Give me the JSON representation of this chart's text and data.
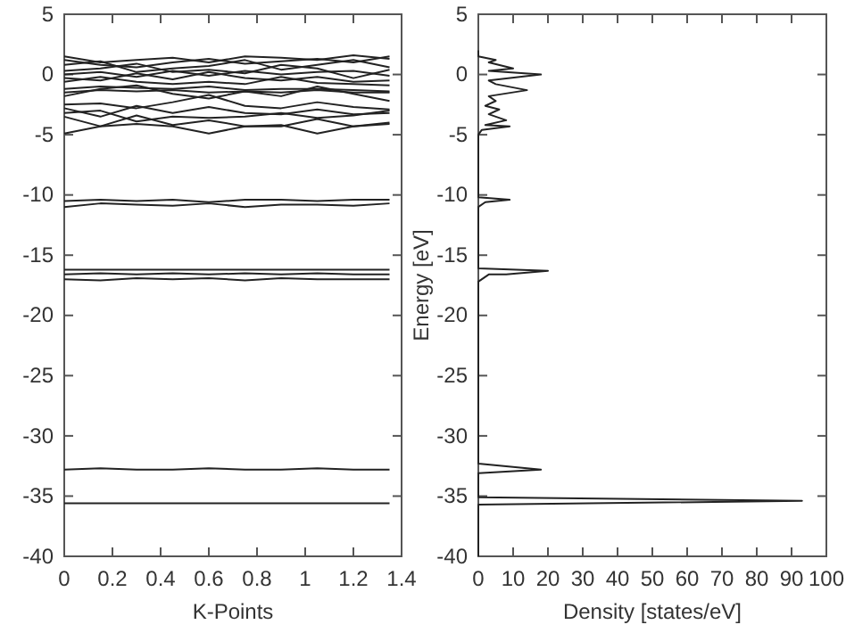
{
  "chart_data": [
    {
      "type": "line",
      "xlabel": "K-Points",
      "xlim": [
        0,
        1.4
      ],
      "xticks": [
        0,
        0.2,
        0.4,
        0.6,
        0.8,
        1,
        1.2,
        1.4
      ],
      "ylim": [
        -40,
        5
      ],
      "yticks": [
        -40,
        -35,
        -30,
        -25,
        -20,
        -15,
        -10,
        -5,
        0,
        5
      ],
      "x": [
        0,
        0.15,
        0.3,
        0.45,
        0.6,
        0.75,
        0.9,
        1.05,
        1.2,
        1.35
      ],
      "series": [
        {
          "color": "#222222",
          "values": [
            1.5,
            1.0,
            1.2,
            1.4,
            1.0,
            1.5,
            1.4,
            1.2,
            1.6,
            1.3
          ]
        },
        {
          "color": "#222222",
          "values": [
            1.2,
            0.8,
            0.6,
            1.0,
            1.3,
            0.9,
            1.1,
            1.3,
            1.0,
            1.5
          ]
        },
        {
          "color": "#222222",
          "values": [
            0.8,
            1.1,
            0.2,
            0.5,
            0.7,
            1.2,
            0.4,
            0.8,
            1.2,
            0.6
          ]
        },
        {
          "color": "#222222",
          "values": [
            0.3,
            0.5,
            0.9,
            0.2,
            0.4,
            0.1,
            0.8,
            0.5,
            -0.3,
            0.4
          ]
        },
        {
          "color": "#222222",
          "values": [
            0,
            0.2,
            -0.2,
            0.3,
            -0.1,
            0.3,
            0,
            0.2,
            0.3,
            -0.1
          ]
        },
        {
          "color": "#222222",
          "values": [
            -0.3,
            -0.5,
            0.1,
            -0.4,
            0.2,
            -0.3,
            -0.5,
            -0.2,
            -0.6,
            -0.5
          ]
        },
        {
          "color": "#222222",
          "values": [
            -0.6,
            -0.2,
            -0.6,
            -0.8,
            -0.6,
            -0.8,
            -0.2,
            -0.7,
            -0.8,
            -0.9
          ]
        },
        {
          "color": "#222222",
          "values": [
            -1.2,
            -1.0,
            -1.1,
            -1.2,
            -1.0,
            -1.3,
            -1.2,
            -1.2,
            -1.3,
            -1.4
          ]
        },
        {
          "color": "#222222",
          "values": [
            -1.5,
            -1.3,
            -1.4,
            -1.3,
            -1.5,
            -1.4,
            -1.5,
            -1.3,
            -1.5,
            -1.5
          ]
        },
        {
          "color": "#222222",
          "values": [
            -1.8,
            -1.2,
            -0.9,
            -1.6,
            -2.0,
            -1.4,
            -1.8,
            -1.0,
            -1.6,
            -2.2
          ]
        },
        {
          "color": "#222222",
          "values": [
            -2.5,
            -2.4,
            -2.8,
            -2.3,
            -1.7,
            -2.6,
            -2.8,
            -2.3,
            -2.7,
            -2.9
          ]
        },
        {
          "color": "#222222",
          "values": [
            -2.8,
            -3.5,
            -2.6,
            -3.2,
            -2.7,
            -3.2,
            -3.3,
            -2.9,
            -3.3,
            -3.2
          ]
        },
        {
          "color": "#222222",
          "values": [
            -3.2,
            -3.0,
            -3.9,
            -3.5,
            -3.6,
            -3.5,
            -3.2,
            -3.6,
            -3.4,
            -3.0
          ]
        },
        {
          "color": "#222222",
          "values": [
            -3.5,
            -4.3,
            -3.4,
            -4.2,
            -3.8,
            -4.3,
            -4.3,
            -3.7,
            -4.3,
            -4.0
          ]
        },
        {
          "color": "#222222",
          "values": [
            -4.9,
            -4.3,
            -4.1,
            -4.3,
            -4.9,
            -4.3,
            -4.2,
            -4.9,
            -4.3,
            -4.1
          ]
        },
        {
          "color": "#222222",
          "values": [
            -10.5,
            -10.4,
            -10.5,
            -10.4,
            -10.6,
            -10.4,
            -10.4,
            -10.5,
            -10.4,
            -10.4
          ]
        },
        {
          "color": "#222222",
          "values": [
            -11.0,
            -10.7,
            -10.8,
            -10.9,
            -10.7,
            -11.0,
            -10.8,
            -10.8,
            -10.9,
            -10.7
          ]
        },
        {
          "color": "#222222",
          "values": [
            -16.2,
            -16.2,
            -16.2,
            -16.2,
            -16.2,
            -16.2,
            -16.2,
            -16.2,
            -16.2,
            -16.2
          ]
        },
        {
          "color": "#222222",
          "values": [
            -16.6,
            -16.5,
            -16.6,
            -16.5,
            -16.6,
            -16.5,
            -16.6,
            -16.5,
            -16.6,
            -16.6
          ]
        },
        {
          "color": "#222222",
          "values": [
            -17.0,
            -17.1,
            -16.9,
            -17.0,
            -16.9,
            -17.1,
            -16.9,
            -17.0,
            -17.0,
            -17.0
          ]
        },
        {
          "color": "#222222",
          "values": [
            -32.8,
            -32.7,
            -32.8,
            -32.8,
            -32.7,
            -32.8,
            -32.8,
            -32.7,
            -32.8,
            -32.8
          ]
        },
        {
          "color": "#222222",
          "values": [
            -35.6,
            -35.6,
            -35.6,
            -35.6,
            -35.6,
            -35.6,
            -35.6,
            -35.6,
            -35.6,
            -35.6
          ]
        }
      ]
    },
    {
      "type": "line",
      "xlabel": "Density [states/eV]",
      "ylabel": "Energy [eV]",
      "xlim": [
        0,
        100
      ],
      "xticks": [
        0,
        10,
        20,
        30,
        40,
        50,
        60,
        70,
        80,
        90,
        100
      ],
      "ylim": [
        -40,
        5
      ],
      "yticks": [
        -40,
        -35,
        -30,
        -25,
        -20,
        -15,
        -10,
        -5,
        0,
        5
      ],
      "series": [
        {
          "color": "#222222",
          "x": [
            0,
            0,
            5,
            3,
            10,
            3,
            18,
            3,
            5,
            14,
            3,
            5,
            2,
            6,
            3,
            8,
            2,
            9,
            1,
            0,
            0,
            9,
            2,
            0,
            0,
            20,
            8,
            3,
            0,
            0,
            18,
            0,
            0,
            93,
            0,
            0
          ],
          "values": [
            2,
            1.5,
            1.2,
            1,
            0.5,
            0.3,
            0,
            -0.5,
            -0.8,
            -1.3,
            -1.8,
            -2.2,
            -2.6,
            -2.9,
            -3.3,
            -3.8,
            -4.2,
            -4.3,
            -4.6,
            -5,
            -10.2,
            -10.4,
            -10.6,
            -11,
            -16.1,
            -16.3,
            -16.6,
            -16.6,
            -17.2,
            -32.3,
            -32.8,
            -33.1,
            -35.1,
            -35.4,
            -35.7,
            -40
          ]
        }
      ]
    }
  ]
}
